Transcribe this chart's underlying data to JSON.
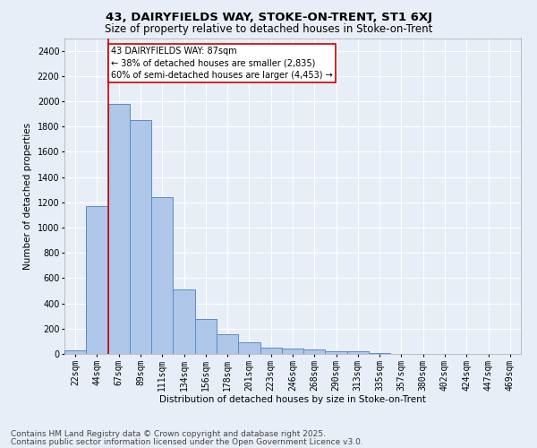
{
  "title1": "43, DAIRYFIELDS WAY, STOKE-ON-TRENT, ST1 6XJ",
  "title2": "Size of property relative to detached houses in Stoke-on-Trent",
  "xlabel": "Distribution of detached houses by size in Stoke-on-Trent",
  "ylabel": "Number of detached properties",
  "categories": [
    "22sqm",
    "44sqm",
    "67sqm",
    "89sqm",
    "111sqm",
    "134sqm",
    "156sqm",
    "178sqm",
    "201sqm",
    "223sqm",
    "246sqm",
    "268sqm",
    "290sqm",
    "313sqm",
    "335sqm",
    "357sqm",
    "380sqm",
    "402sqm",
    "424sqm",
    "447sqm",
    "469sqm"
  ],
  "values": [
    30,
    1170,
    1980,
    1850,
    1240,
    510,
    275,
    155,
    90,
    50,
    45,
    35,
    20,
    20,
    5,
    0,
    0,
    0,
    0,
    0,
    0
  ],
  "bar_color": "#aec6e8",
  "bar_edge_color": "#5b8cc8",
  "vline_color": "#cc0000",
  "vline_x_index": 1.5,
  "annotation_line1": "43 DAIRYFIELDS WAY: 87sqm",
  "annotation_line2": "← 38% of detached houses are smaller (2,835)",
  "annotation_line3": "60% of semi-detached houses are larger (4,453) →",
  "annotation_box_color": "#ffffff",
  "annotation_border_color": "#cc0000",
  "ylim": [
    0,
    2500
  ],
  "yticks": [
    0,
    200,
    400,
    600,
    800,
    1000,
    1200,
    1400,
    1600,
    1800,
    2000,
    2200,
    2400
  ],
  "background_color": "#e8eef7",
  "grid_color": "#ffffff",
  "footer1": "Contains HM Land Registry data © Crown copyright and database right 2025.",
  "footer2": "Contains public sector information licensed under the Open Government Licence v3.0.",
  "title1_fontsize": 9.5,
  "title2_fontsize": 8.5,
  "axis_label_fontsize": 7.5,
  "tick_fontsize": 7,
  "annotation_fontsize": 7,
  "footer_fontsize": 6.5
}
